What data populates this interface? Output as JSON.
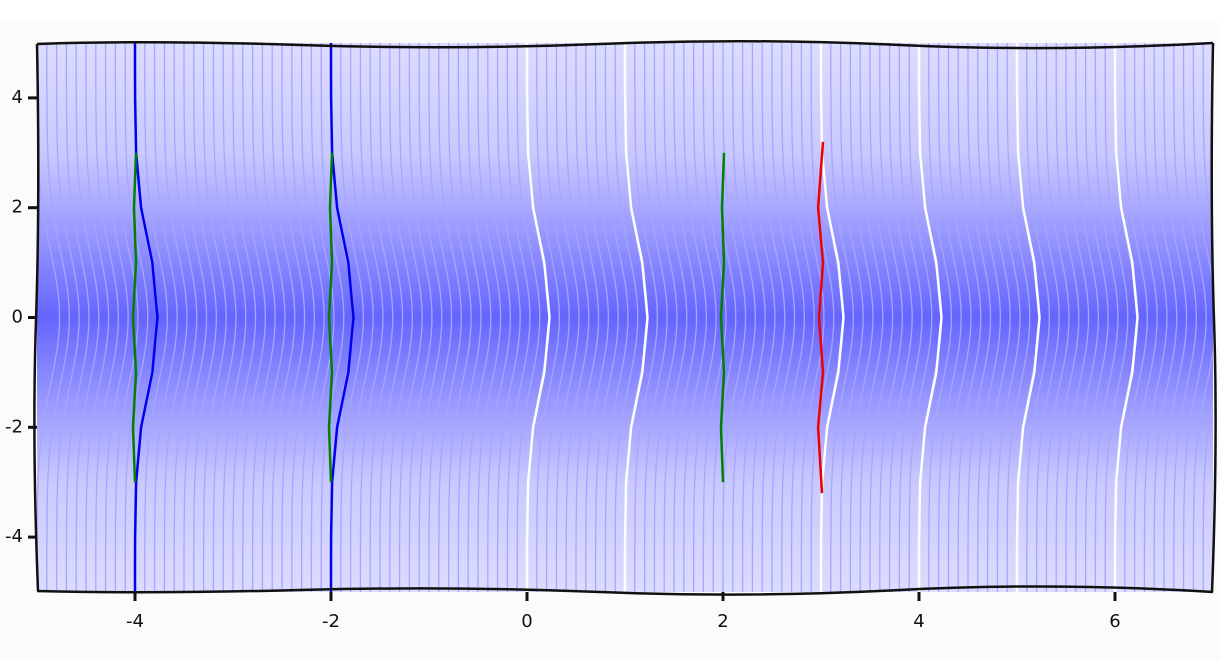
{
  "chart_data": {
    "type": "line",
    "xlim": [
      -5,
      7
    ],
    "ylim": [
      -5,
      5
    ],
    "xticks": [
      -4,
      -2,
      0,
      2,
      4,
      6
    ],
    "yticks": [
      -4,
      -2,
      0,
      2,
      4
    ],
    "background_lines": {
      "color": "#a6a6ff",
      "bump_amplitude": 0.23,
      "bump_width": 1.2,
      "x0": [
        -5,
        -4.9,
        -4.8,
        -4.7,
        -4.6,
        -4.5,
        -4.4,
        -4.3,
        -4.2,
        -4.1,
        -4,
        -3.9,
        -3.8,
        -3.7,
        -3.6,
        -3.5,
        -3.4,
        -3.3,
        -3.2,
        -3.1,
        -3,
        -2.9,
        -2.8,
        -2.7,
        -2.6,
        -2.5,
        -2.4,
        -2.3,
        -2.2,
        -2.1,
        -2,
        -1.9,
        -1.8,
        -1.7,
        -1.6,
        -1.5,
        -1.4,
        -1.3,
        -1.2,
        -1.1,
        -1,
        -0.9,
        -0.8,
        -0.7,
        -0.6,
        -0.5,
        -0.4,
        -0.3,
        -0.2,
        -0.1,
        0,
        0.1,
        0.2,
        0.3,
        0.4,
        0.5,
        0.6,
        0.7,
        0.8,
        0.9,
        1,
        1.1,
        1.2,
        1.3,
        1.4,
        1.5,
        1.6,
        1.7,
        1.8,
        1.9,
        2,
        2.1,
        2.2,
        2.3,
        2.4,
        2.5,
        2.6,
        2.7,
        2.8,
        2.9,
        3,
        3.1,
        3.2,
        3.3,
        3.4,
        3.5,
        3.6,
        3.7,
        3.8,
        3.9,
        4,
        4.1,
        4.2,
        4.3,
        4.4,
        4.5,
        4.6,
        4.7,
        4.8,
        4.9,
        5,
        5.1,
        5.2,
        5.3,
        5.4,
        5.5,
        5.6,
        5.7,
        5.8,
        5.9,
        6,
        6.1,
        6.2,
        6.3,
        6.4,
        6.5,
        6.6,
        6.7,
        6.8,
        6.9
      ]
    },
    "series": [
      {
        "color": "#ffffff",
        "x": [
          0,
          0,
          0.001,
          0.011,
          0.062,
          0.177,
          0.23,
          0.177,
          0.062,
          0.011,
          0.001,
          0,
          0
        ],
        "y": [
          -5,
          -4.5,
          -4,
          -3,
          -2,
          -1,
          0,
          1,
          2,
          3,
          4,
          4.5,
          5
        ]
      },
      {
        "color": "#ffffff",
        "x": [
          1,
          1,
          1.001,
          1.011,
          1.062,
          1.177,
          1.23,
          1.177,
          1.062,
          1.011,
          1.001,
          1,
          1
        ],
        "y": [
          -5,
          -4.5,
          -4,
          -3,
          -2,
          -1,
          0,
          1,
          2,
          3,
          4,
          4.5,
          5
        ]
      },
      {
        "color": "#ffffff",
        "x": [
          3,
          3,
          3.001,
          3.011,
          3.062,
          3.177,
          3.23,
          3.177,
          3.062,
          3.011,
          3.001,
          3,
          3
        ],
        "y": [
          -5,
          -4.5,
          -4,
          -3,
          -2,
          -1,
          0,
          1,
          2,
          3,
          4,
          4.5,
          5
        ]
      },
      {
        "color": "#ffffff",
        "x": [
          4,
          4,
          4.001,
          4.011,
          4.062,
          4.177,
          4.23,
          4.177,
          4.062,
          4.011,
          4.001,
          4,
          4
        ],
        "y": [
          -5,
          -4.5,
          -4,
          -3,
          -2,
          -1,
          0,
          1,
          2,
          3,
          4,
          4.5,
          5
        ]
      },
      {
        "color": "#ffffff",
        "x": [
          5,
          5,
          5.001,
          5.011,
          5.062,
          5.177,
          5.23,
          5.177,
          5.062,
          5.011,
          5.001,
          5,
          5
        ],
        "y": [
          -5,
          -4.5,
          -4,
          -3,
          -2,
          -1,
          0,
          1,
          2,
          3,
          4,
          4.5,
          5
        ]
      },
      {
        "color": "#ffffff",
        "x": [
          6,
          6,
          6.001,
          6.011,
          6.062,
          6.177,
          6.23,
          6.177,
          6.062,
          6.011,
          6.001,
          6,
          6
        ],
        "y": [
          -5,
          -4.5,
          -4,
          -3,
          -2,
          -1,
          0,
          1,
          2,
          3,
          4,
          4.5,
          5
        ]
      },
      {
        "color": "#0000ee",
        "x": [
          -4,
          -4,
          -3.999,
          -3.989,
          -3.938,
          -3.823,
          -3.77,
          -3.823,
          -3.938,
          -3.989,
          -3.999,
          -4,
          -4
        ],
        "y": [
          -5,
          -4.5,
          -4,
          -3,
          -2,
          -1,
          0,
          1,
          2,
          3,
          4,
          4.5,
          5
        ]
      },
      {
        "color": "#0000ee",
        "x": [
          -2,
          -2,
          -1.999,
          -1.989,
          -1.938,
          -1.823,
          -1.77,
          -1.823,
          -1.938,
          -1.989,
          -1.999,
          -2,
          -2
        ],
        "y": [
          -5,
          -4.5,
          -4,
          -3,
          -2,
          -1,
          0,
          1,
          2,
          3,
          4,
          4.5,
          5
        ]
      },
      {
        "color": "#008000",
        "x": [
          -4,
          -4.02,
          -3.99,
          -4.02,
          -3.99,
          -4.01,
          -3.99
        ],
        "y": [
          -3,
          -2,
          -1,
          0,
          1,
          2,
          3
        ]
      },
      {
        "color": "#008000",
        "x": [
          -2,
          -2.02,
          -1.99,
          -2.02,
          -1.99,
          -2.01,
          -1.99
        ],
        "y": [
          -3,
          -2,
          -1,
          0,
          1,
          2,
          3
        ]
      },
      {
        "color": "#008000",
        "x": [
          2,
          1.98,
          2.01,
          1.98,
          2.01,
          1.99,
          2.01
        ],
        "y": [
          -3,
          -2,
          -1,
          0,
          1,
          2,
          3
        ]
      },
      {
        "color": "#ee0000",
        "x": [
          3.01,
          2.97,
          3.02,
          2.98,
          3.02,
          2.97,
          3.02
        ],
        "y": [
          -3.2,
          -2,
          -1,
          0,
          1,
          2,
          3.2
        ]
      }
    ]
  }
}
